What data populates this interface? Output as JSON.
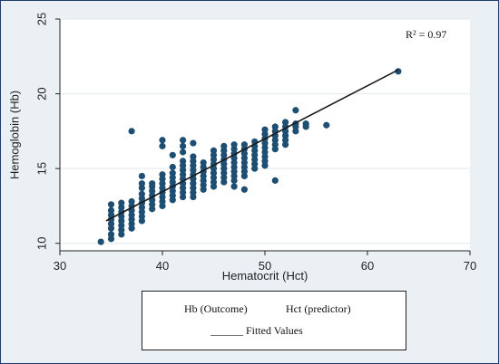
{
  "chart_data": {
    "type": "scatter",
    "xlabel": "Hematocrit (Hct)",
    "ylabel": "Hemoglobin (Hb)",
    "xlim": [
      30,
      70
    ],
    "ylim": [
      9.5,
      25
    ],
    "xticks": [
      30,
      40,
      50,
      60,
      70
    ],
    "yticks": [
      10,
      15,
      20,
      25
    ],
    "grid": "horizontal",
    "annotation": "R² = 0.97",
    "fitted_line": {
      "x": [
        34.5,
        63
      ],
      "y": [
        11.5,
        21.6
      ]
    },
    "points": [
      [
        34,
        10.1
      ],
      [
        35,
        10.3
      ],
      [
        35,
        10.6
      ],
      [
        35,
        11.0
      ],
      [
        35,
        11.3
      ],
      [
        35,
        11.6
      ],
      [
        35,
        11.9
      ],
      [
        35,
        12.2
      ],
      [
        35,
        12.6
      ],
      [
        36,
        10.6
      ],
      [
        36,
        10.9
      ],
      [
        36,
        11.2
      ],
      [
        36,
        11.5
      ],
      [
        36,
        11.8
      ],
      [
        36,
        12.1
      ],
      [
        36,
        12.4
      ],
      [
        36,
        12.7
      ],
      [
        37,
        11.0
      ],
      [
        37,
        11.3
      ],
      [
        37,
        11.6
      ],
      [
        37,
        11.9
      ],
      [
        37,
        12.2
      ],
      [
        37,
        12.5
      ],
      [
        37,
        12.8
      ],
      [
        37,
        17.5
      ],
      [
        38,
        11.5
      ],
      [
        38,
        11.8
      ],
      [
        38,
        12.1
      ],
      [
        38,
        12.4
      ],
      [
        38,
        12.7
      ],
      [
        38,
        13.0
      ],
      [
        38,
        13.3
      ],
      [
        38,
        13.7
      ],
      [
        38,
        14.0
      ],
      [
        38,
        14.5
      ],
      [
        39,
        12.3
      ],
      [
        39,
        12.6
      ],
      [
        39,
        12.9
      ],
      [
        39,
        13.2
      ],
      [
        39,
        13.5
      ],
      [
        39,
        13.8
      ],
      [
        39,
        14.0
      ],
      [
        40,
        12.5
      ],
      [
        40,
        12.8
      ],
      [
        40,
        13.1
      ],
      [
        40,
        13.4
      ],
      [
        40,
        13.7
      ],
      [
        40,
        14.0
      ],
      [
        40,
        14.3
      ],
      [
        40,
        14.6
      ],
      [
        40,
        16.5
      ],
      [
        40,
        16.9
      ],
      [
        41,
        12.9
      ],
      [
        41,
        13.2
      ],
      [
        41,
        13.5
      ],
      [
        41,
        13.8
      ],
      [
        41,
        14.1
      ],
      [
        41,
        14.4
      ],
      [
        41,
        14.7
      ],
      [
        41,
        15.1
      ],
      [
        41,
        15.9
      ],
      [
        42,
        13.1
      ],
      [
        42,
        13.4
      ],
      [
        42,
        13.7
      ],
      [
        42,
        14.0
      ],
      [
        42,
        14.3
      ],
      [
        42,
        14.6
      ],
      [
        42,
        14.9
      ],
      [
        42,
        15.2
      ],
      [
        42,
        15.5
      ],
      [
        42,
        16.1
      ],
      [
        42,
        16.5
      ],
      [
        42,
        16.9
      ],
      [
        43,
        13.1
      ],
      [
        43,
        13.4
      ],
      [
        43,
        13.7
      ],
      [
        43,
        14.0
      ],
      [
        43,
        14.3
      ],
      [
        43,
        14.6
      ],
      [
        43,
        14.9
      ],
      [
        43,
        15.2
      ],
      [
        43,
        15.5
      ],
      [
        43,
        15.8
      ],
      [
        43,
        16.7
      ],
      [
        44,
        13.6
      ],
      [
        44,
        13.9
      ],
      [
        44,
        14.2
      ],
      [
        44,
        14.5
      ],
      [
        44,
        14.8
      ],
      [
        44,
        15.1
      ],
      [
        44,
        15.4
      ],
      [
        45,
        13.8
      ],
      [
        45,
        14.1
      ],
      [
        45,
        14.4
      ],
      [
        45,
        14.7
      ],
      [
        45,
        15.0
      ],
      [
        45,
        15.3
      ],
      [
        45,
        15.6
      ],
      [
        45,
        15.9
      ],
      [
        45,
        16.2
      ],
      [
        46,
        14.1
      ],
      [
        46,
        14.4
      ],
      [
        46,
        14.7
      ],
      [
        46,
        15.0
      ],
      [
        46,
        15.3
      ],
      [
        46,
        15.6
      ],
      [
        46,
        15.9
      ],
      [
        46,
        16.2
      ],
      [
        46,
        16.5
      ],
      [
        47,
        13.8
      ],
      [
        47,
        14.2
      ],
      [
        47,
        14.5
      ],
      [
        47,
        14.8
      ],
      [
        47,
        15.1
      ],
      [
        47,
        15.4
      ],
      [
        47,
        15.7
      ],
      [
        47,
        16.0
      ],
      [
        47,
        16.3
      ],
      [
        47,
        16.6
      ],
      [
        48,
        13.6
      ],
      [
        48,
        14.5
      ],
      [
        48,
        14.8
      ],
      [
        48,
        15.1
      ],
      [
        48,
        15.4
      ],
      [
        48,
        15.7
      ],
      [
        48,
        16.0
      ],
      [
        48,
        16.3
      ],
      [
        48,
        16.6
      ],
      [
        49,
        15.0
      ],
      [
        49,
        15.3
      ],
      [
        49,
        15.6
      ],
      [
        49,
        15.9
      ],
      [
        49,
        16.2
      ],
      [
        49,
        16.5
      ],
      [
        49,
        16.8
      ],
      [
        50,
        15.2
      ],
      [
        50,
        15.5
      ],
      [
        50,
        15.8
      ],
      [
        50,
        16.1
      ],
      [
        50,
        16.4
      ],
      [
        50,
        16.7
      ],
      [
        50,
        17.0
      ],
      [
        50,
        17.3
      ],
      [
        50,
        17.6
      ],
      [
        51,
        14.2
      ],
      [
        51,
        16.3
      ],
      [
        51,
        16.6
      ],
      [
        51,
        16.9
      ],
      [
        51,
        17.2
      ],
      [
        51,
        17.5
      ],
      [
        51,
        17.8
      ],
      [
        52,
        16.6
      ],
      [
        52,
        16.9
      ],
      [
        52,
        17.2
      ],
      [
        52,
        17.5
      ],
      [
        52,
        17.8
      ],
      [
        52,
        18.1
      ],
      [
        53,
        17.5
      ],
      [
        53,
        17.8
      ],
      [
        53,
        18.0
      ],
      [
        53,
        18.9
      ],
      [
        54,
        17.8
      ],
      [
        54,
        18.0
      ],
      [
        56,
        17.9
      ],
      [
        63,
        21.5
      ]
    ]
  },
  "legend": {
    "entry_outcome": "Hb (Outcome)",
    "entry_predictor": "Hct (predictor)",
    "entry_fitted": "______ Fitted Values"
  },
  "colors": {
    "points": "#1f4e73",
    "line": "#1a1a1a",
    "plot_bg": "#ffffff",
    "grid": "#e3e8ec"
  }
}
